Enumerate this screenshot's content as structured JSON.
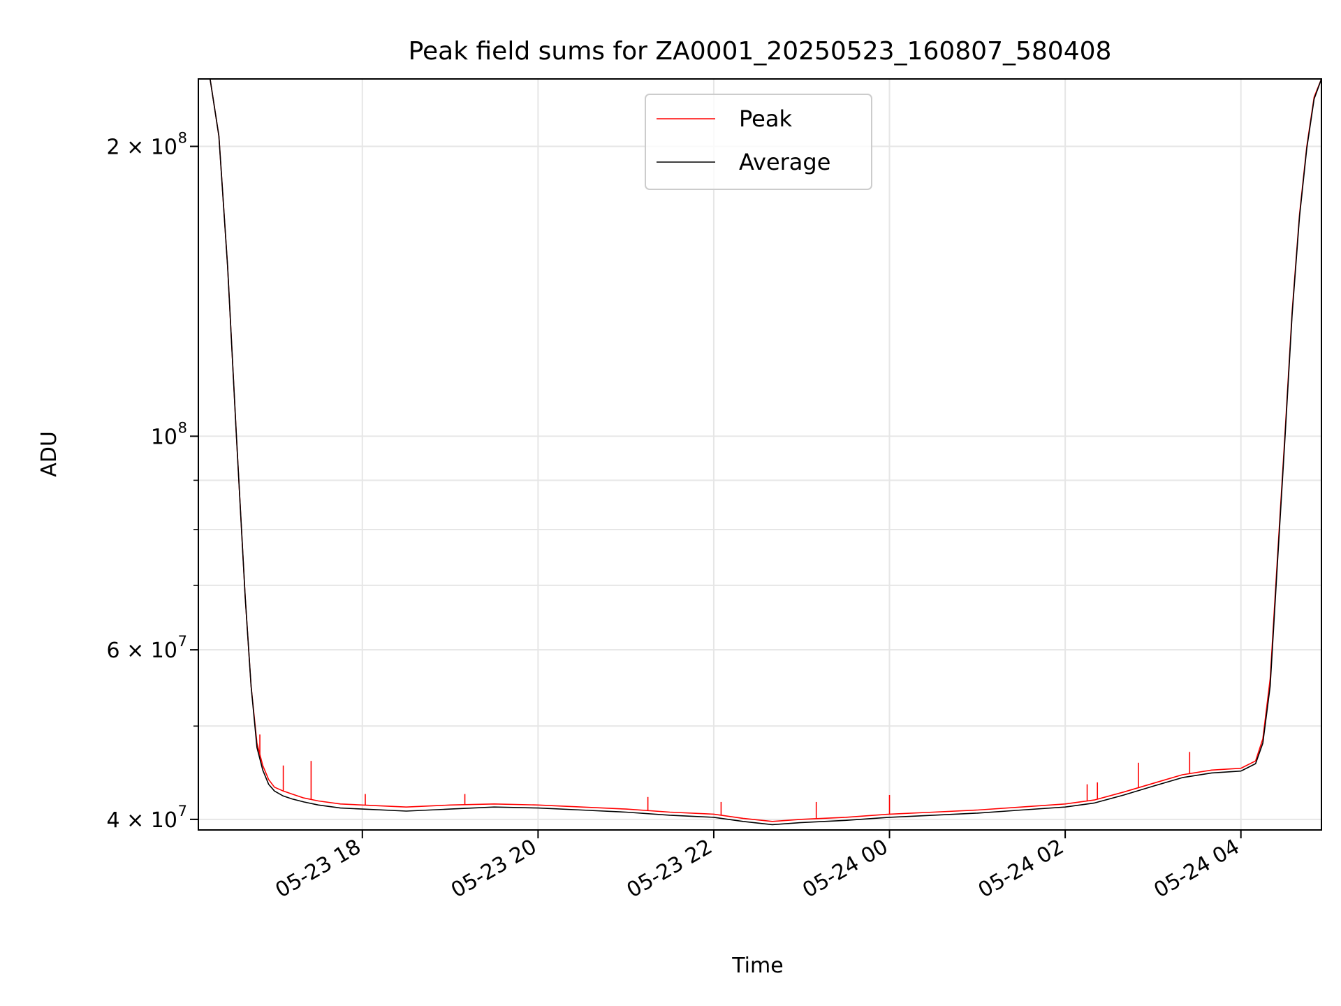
{
  "chart_data": {
    "type": "line",
    "title": "Peak field sums for ZA0001_20250523_160807_580408",
    "xlabel": "Time",
    "ylabel": "ADU",
    "yscale": "log",
    "xlim": [
      "2025-05-23 16:08",
      "2025-05-24 04:55"
    ],
    "ylim": [
      39000000,
      235000000
    ],
    "grid": true,
    "legend": {
      "location": "upper center"
    },
    "x_ticks": [
      {
        "value": "2025-05-23 18:00",
        "label": "05-23 18"
      },
      {
        "value": "2025-05-23 20:00",
        "label": "05-23 20"
      },
      {
        "value": "2025-05-23 22:00",
        "label": "05-23 22"
      },
      {
        "value": "2025-05-24 00:00",
        "label": "05-24 00"
      },
      {
        "value": "2025-05-24 02:00",
        "label": "05-24 02"
      },
      {
        "value": "2025-05-24 04:00",
        "label": "05-24 04"
      }
    ],
    "y_ticks": [
      {
        "value": 40000000,
        "label": "4 × 10",
        "exp": "7"
      },
      {
        "value": 60000000,
        "label": "6 × 10",
        "exp": "7"
      },
      {
        "value": 100000000,
        "label": "10",
        "exp": "8"
      },
      {
        "value": 200000000,
        "label": "2 × 10",
        "exp": "8"
      }
    ],
    "series": [
      {
        "name": "Peak",
        "color": "#ff0000",
        "x": [
          "2025-05-23 16:08",
          "2025-05-23 16:16",
          "2025-05-23 16:22",
          "2025-05-23 16:28",
          "2025-05-23 16:34",
          "2025-05-23 16:40",
          "2025-05-23 16:44",
          "2025-05-23 16:48",
          "2025-05-23 16:52",
          "2025-05-23 16:56",
          "2025-05-23 17:00",
          "2025-05-23 17:06",
          "2025-05-23 17:12",
          "2025-05-23 17:20",
          "2025-05-23 17:30",
          "2025-05-23 17:45",
          "2025-05-23 18:00",
          "2025-05-23 18:30",
          "2025-05-23 19:00",
          "2025-05-23 19:30",
          "2025-05-23 20:00",
          "2025-05-23 20:30",
          "2025-05-23 21:00",
          "2025-05-23 21:30",
          "2025-05-23 22:00",
          "2025-05-23 22:20",
          "2025-05-23 22:40",
          "2025-05-23 23:00",
          "2025-05-23 23:30",
          "2025-05-24 00:00",
          "2025-05-24 00:30",
          "2025-05-24 01:00",
          "2025-05-24 01:30",
          "2025-05-24 02:00",
          "2025-05-24 02:20",
          "2025-05-24 02:40",
          "2025-05-24 03:00",
          "2025-05-24 03:20",
          "2025-05-24 03:40",
          "2025-05-24 04:00",
          "2025-05-24 04:10",
          "2025-05-24 04:15",
          "2025-05-24 04:20",
          "2025-05-24 04:25",
          "2025-05-24 04:30",
          "2025-05-24 04:35",
          "2025-05-24 04:40",
          "2025-05-24 04:45",
          "2025-05-24 04:50",
          "2025-05-24 04:55"
        ],
        "values": [
          235000000,
          235000000,
          205000000,
          150000000,
          100000000,
          68000000,
          55000000,
          48000000,
          45500000,
          44000000,
          43200000,
          42800000,
          42500000,
          42100000,
          41800000,
          41500000,
          41400000,
          41200000,
          41400000,
          41500000,
          41400000,
          41200000,
          41000000,
          40700000,
          40500000,
          40100000,
          39800000,
          40000000,
          40200000,
          40500000,
          40700000,
          40900000,
          41200000,
          41500000,
          41900000,
          42700000,
          43600000,
          44500000,
          45000000,
          45200000,
          46000000,
          48500000,
          56000000,
          75000000,
          100000000,
          135000000,
          170000000,
          200000000,
          225000000,
          235000000
        ],
        "spikes": [
          {
            "x": "2025-05-23 16:50",
            "value": 49000000
          },
          {
            "x": "2025-05-23 17:06",
            "value": 45500000
          },
          {
            "x": "2025-05-23 17:25",
            "value": 46000000
          },
          {
            "x": "2025-05-23 18:02",
            "value": 42500000
          },
          {
            "x": "2025-05-23 19:10",
            "value": 42500000
          },
          {
            "x": "2025-05-23 21:15",
            "value": 42200000
          },
          {
            "x": "2025-05-23 22:05",
            "value": 41700000
          },
          {
            "x": "2025-05-23 23:10",
            "value": 41700000
          },
          {
            "x": "2025-05-24 00:00",
            "value": 42400000
          },
          {
            "x": "2025-05-24 02:15",
            "value": 43500000
          },
          {
            "x": "2025-05-24 02:22",
            "value": 43700000
          },
          {
            "x": "2025-05-24 02:50",
            "value": 45800000
          },
          {
            "x": "2025-05-24 03:25",
            "value": 47000000
          }
        ]
      },
      {
        "name": "Average",
        "color": "#000000",
        "x": [
          "2025-05-23 16:08",
          "2025-05-23 16:16",
          "2025-05-23 16:22",
          "2025-05-23 16:28",
          "2025-05-23 16:34",
          "2025-05-23 16:40",
          "2025-05-23 16:44",
          "2025-05-23 16:48",
          "2025-05-23 16:52",
          "2025-05-23 16:56",
          "2025-05-23 17:00",
          "2025-05-23 17:06",
          "2025-05-23 17:12",
          "2025-05-23 17:20",
          "2025-05-23 17:30",
          "2025-05-23 17:45",
          "2025-05-23 18:00",
          "2025-05-23 18:30",
          "2025-05-23 19:00",
          "2025-05-23 19:30",
          "2025-05-23 20:00",
          "2025-05-23 20:30",
          "2025-05-23 21:00",
          "2025-05-23 21:30",
          "2025-05-23 22:00",
          "2025-05-23 22:20",
          "2025-05-23 22:40",
          "2025-05-23 23:00",
          "2025-05-23 23:30",
          "2025-05-24 00:00",
          "2025-05-24 00:30",
          "2025-05-24 01:00",
          "2025-05-24 01:30",
          "2025-05-24 02:00",
          "2025-05-24 02:20",
          "2025-05-24 02:40",
          "2025-05-24 03:00",
          "2025-05-24 03:20",
          "2025-05-24 03:40",
          "2025-05-24 04:00",
          "2025-05-24 04:10",
          "2025-05-24 04:15",
          "2025-05-24 04:20",
          "2025-05-24 04:25",
          "2025-05-24 04:30",
          "2025-05-24 04:35",
          "2025-05-24 04:40",
          "2025-05-24 04:45",
          "2025-05-24 04:50",
          "2025-05-24 04:55"
        ],
        "values": [
          235000000,
          235000000,
          205000000,
          150000000,
          100000000,
          68000000,
          55000000,
          47500000,
          45000000,
          43500000,
          42800000,
          42300000,
          42000000,
          41700000,
          41400000,
          41100000,
          41000000,
          40800000,
          41000000,
          41200000,
          41100000,
          40900000,
          40700000,
          40400000,
          40200000,
          39800000,
          39500000,
          39700000,
          39900000,
          40200000,
          40400000,
          40600000,
          40900000,
          41200000,
          41600000,
          42400000,
          43300000,
          44200000,
          44700000,
          44900000,
          45700000,
          48000000,
          55000000,
          74000000,
          99000000,
          134000000,
          169000000,
          199000000,
          224000000,
          235000000
        ]
      }
    ]
  }
}
